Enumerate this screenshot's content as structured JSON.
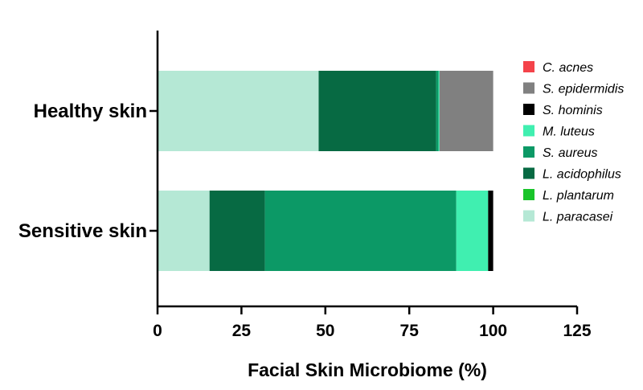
{
  "chart_data": {
    "type": "bar",
    "orientation": "horizontal",
    "stacked": true,
    "title": "",
    "xlabel": "Facial Skin Microbiome (%)",
    "ylabel": "",
    "xlim": [
      0,
      125
    ],
    "xticks": [
      0,
      25,
      50,
      75,
      100,
      125
    ],
    "categories": [
      "Healthy skin",
      "Sensitive skin"
    ],
    "series": [
      {
        "name": "L. paracasei",
        "color": "#b5e8d5",
        "values": [
          48,
          15.5
        ]
      },
      {
        "name": "L. plantarum",
        "color": "#19c42a",
        "values": [
          0,
          0
        ]
      },
      {
        "name": "L. acidophilus",
        "color": "#076a43",
        "values": [
          35,
          16.5
        ]
      },
      {
        "name": "S. aureus",
        "color": "#0c9966",
        "values": [
          0.7,
          57
        ]
      },
      {
        "name": "M. luteus",
        "color": "#40efb0",
        "values": [
          0.3,
          9.5
        ]
      },
      {
        "name": "S. hominis",
        "color": "#000000",
        "values": [
          0,
          1.5
        ]
      },
      {
        "name": "S. epidermidis",
        "color": "#808080",
        "values": [
          16,
          0
        ]
      },
      {
        "name": "C. acnes",
        "color": "#f4434a",
        "values": [
          0,
          0
        ]
      }
    ],
    "legend": {
      "position": "right",
      "order": [
        "C. acnes",
        "S. epidermidis",
        "S. hominis",
        "M. luteus",
        "S. aureus",
        "L. acidophilus",
        "L. plantarum",
        "L. paracasei"
      ]
    },
    "grid": false
  }
}
